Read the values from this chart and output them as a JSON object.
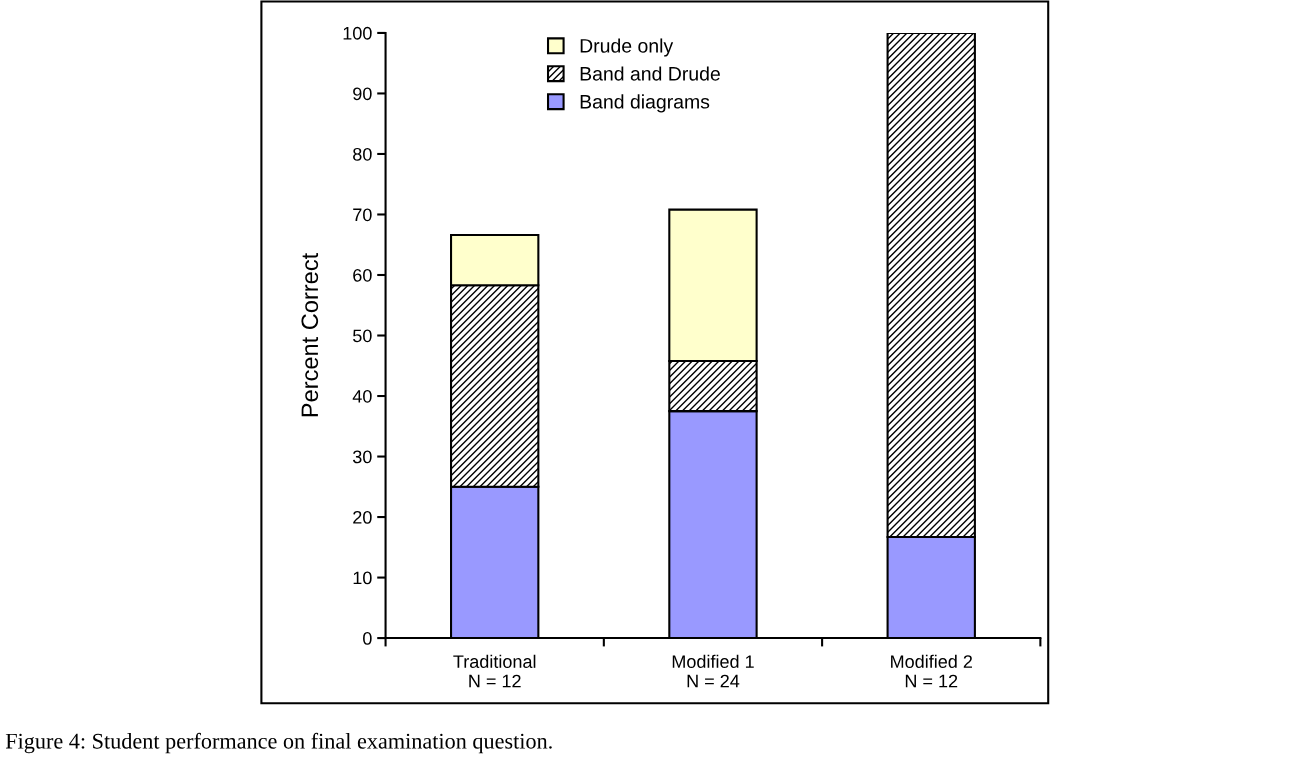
{
  "chart_data": {
    "type": "bar",
    "stacked": true,
    "ylabel": "Percent Correct",
    "categories": [
      "Traditional\nN = 12",
      "Modified 1\nN = 24",
      "Modified 2\nN = 12"
    ],
    "series": [
      {
        "name": "Band diagrams",
        "color": "#9999ff",
        "values": [
          25,
          37.5,
          16.7
        ]
      },
      {
        "name": "Band and Drude",
        "color": "#000000",
        "values": [
          33.3,
          8.3,
          83.3
        ]
      },
      {
        "name": "Drude only",
        "color": "#ffffcc",
        "values": [
          8.3,
          25,
          null
        ]
      }
    ],
    "ylim": [
      0,
      100
    ],
    "yticks": [
      0,
      10,
      20,
      30,
      40,
      50,
      60,
      70,
      80,
      90,
      100
    ],
    "grid": false,
    "legend": "top",
    "annotations": [
      "Figure 4: Student performance on final examination question."
    ]
  }
}
